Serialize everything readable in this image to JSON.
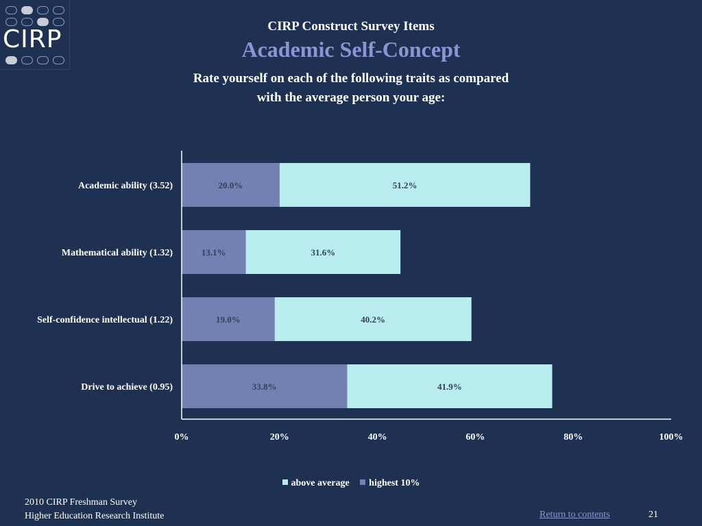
{
  "header": {
    "logo_text": "CIRP",
    "kicker": "CIRP Construct Survey Items",
    "title": "Academic Self-Concept",
    "subtitle_line1": "Rate yourself on each of the following traits as compared",
    "subtitle_line2": "with the average person your age:"
  },
  "colors": {
    "background": "#1f3152",
    "above_average": "#b8ecee",
    "highest_10": "#7281b1",
    "title_accent": "#8b95d3"
  },
  "chart_data": {
    "type": "bar",
    "orientation": "horizontal",
    "stacked": true,
    "categories": [
      "Academic ability (3.52)",
      "Mathematical ability (1.32)",
      "Self-confidence intellectual (1.22)",
      "Drive to achieve (0.95)"
    ],
    "series": [
      {
        "name": "highest 10%",
        "values": [
          20.0,
          13.1,
          19.0,
          33.8
        ],
        "labels": [
          "20.0%",
          "13.1%",
          "19.0%",
          "33.8%"
        ]
      },
      {
        "name": "above average",
        "values": [
          51.2,
          31.6,
          40.2,
          41.9
        ],
        "labels": [
          "51.2%",
          "31.6%",
          "40.2%",
          "41.9%"
        ]
      }
    ],
    "x_ticks": [
      "0%",
      "20%",
      "40%",
      "60%",
      "80%",
      "100%"
    ],
    "xlim": [
      0,
      100
    ],
    "grid": false,
    "legend": {
      "position": "bottom",
      "entries": [
        "above average",
        "highest 10%"
      ]
    }
  },
  "footer": {
    "line1": "2010 CIRP Freshman Survey",
    "line2": "Higher Education Research Institute",
    "link": "Return to contents",
    "page": "21"
  }
}
